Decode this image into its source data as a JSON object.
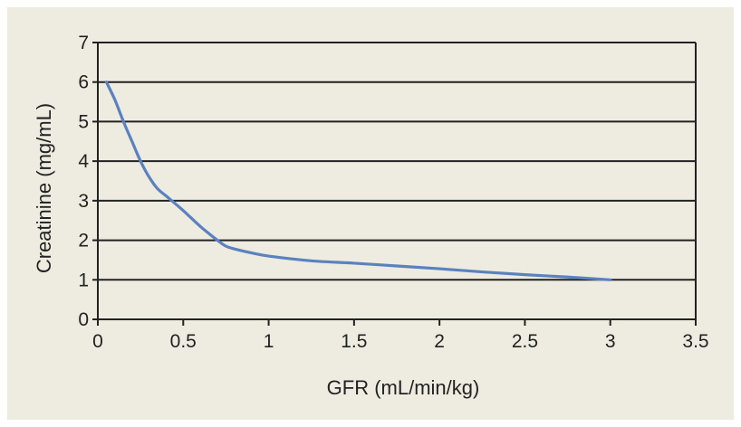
{
  "colors": {
    "background": "#eeebe0",
    "grid": "#222222",
    "series": "#5b82c0",
    "text": "#222222"
  },
  "chart_data": {
    "type": "line",
    "title": "",
    "xlabel": "GFR (mL/min/kg)",
    "ylabel": "Creatinine (mg/mL)",
    "xlim": [
      0,
      3.5
    ],
    "ylim": [
      0,
      7
    ],
    "x_ticks": [
      "0",
      "0.5",
      "1",
      "1.5",
      "2",
      "2.5",
      "3",
      "3.5"
    ],
    "y_ticks": [
      "0",
      "1",
      "2",
      "3",
      "4",
      "5",
      "6",
      "7"
    ],
    "grid": "horizontal",
    "legend": "none",
    "series": [
      {
        "x": [
          0.05,
          0.1,
          0.15,
          0.2,
          0.25,
          0.3,
          0.35,
          0.4,
          0.5,
          0.6,
          0.7,
          0.75,
          0.8,
          0.9,
          1.0,
          1.25,
          1.5,
          1.75,
          2.0,
          2.25,
          2.5,
          2.75,
          3.0
        ],
        "y": [
          6.0,
          5.55,
          5.0,
          4.5,
          4.0,
          3.6,
          3.3,
          3.12,
          2.75,
          2.35,
          2.0,
          1.85,
          1.78,
          1.68,
          1.6,
          1.48,
          1.42,
          1.35,
          1.28,
          1.2,
          1.13,
          1.07,
          1.0
        ]
      }
    ]
  }
}
